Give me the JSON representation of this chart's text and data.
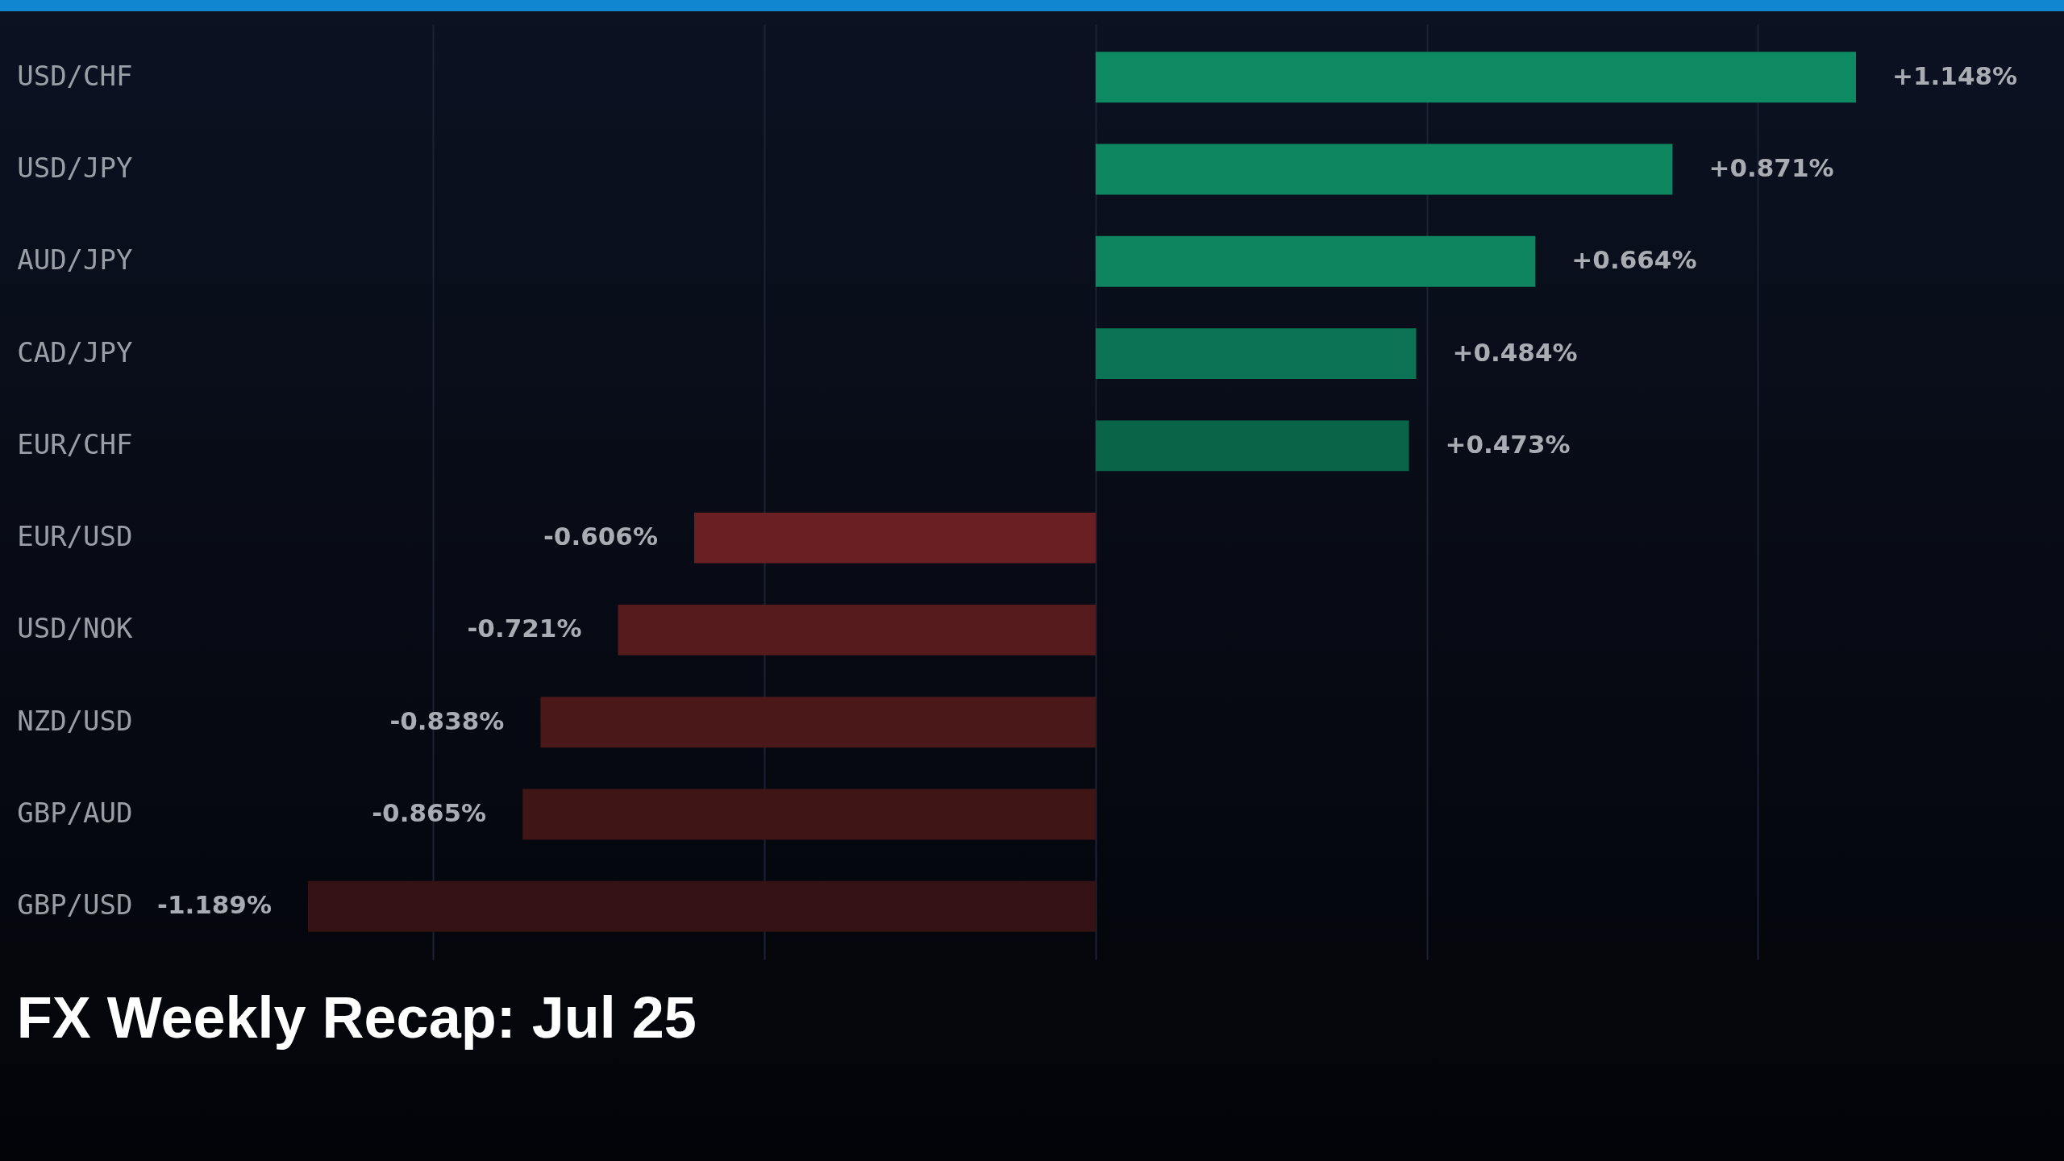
{
  "chart_data": {
    "type": "bar",
    "orientation": "horizontal",
    "title": "FX Weekly Recap: Jul 25",
    "categories": [
      "USD/CHF",
      "USD/JPY",
      "AUD/JPY",
      "CAD/JPY",
      "EUR/CHF",
      "EUR/USD",
      "USD/NOK",
      "NZD/USD",
      "GBP/AUD",
      "GBP/USD"
    ],
    "values": [
      1.148,
      0.871,
      0.664,
      0.484,
      0.473,
      -0.606,
      -0.721,
      -0.838,
      -0.865,
      -1.189
    ],
    "value_labels": [
      "+1.148%",
      "+0.871%",
      "+0.664%",
      "+0.484%",
      "+0.473%",
      "-0.606%",
      "-0.721%",
      "-0.838%",
      "-0.865%",
      "-1.189%"
    ],
    "colors": [
      "#0e8a62",
      "#0e8760",
      "#0e855e",
      "#0c7454",
      "#0a6548",
      "#6a1f22",
      "#561b1d",
      "#4a1819",
      "#3f1516",
      "#351213"
    ],
    "xticks": [
      {
        "value": -1,
        "label": null
      },
      {
        "value": -0.5,
        "label": null
      },
      {
        "value": 0,
        "label": null
      },
      {
        "value": 0.5,
        "label": null
      },
      {
        "value": 1,
        "label": null
      }
    ],
    "tick_labels": "y",
    "grid": "x"
  }
}
